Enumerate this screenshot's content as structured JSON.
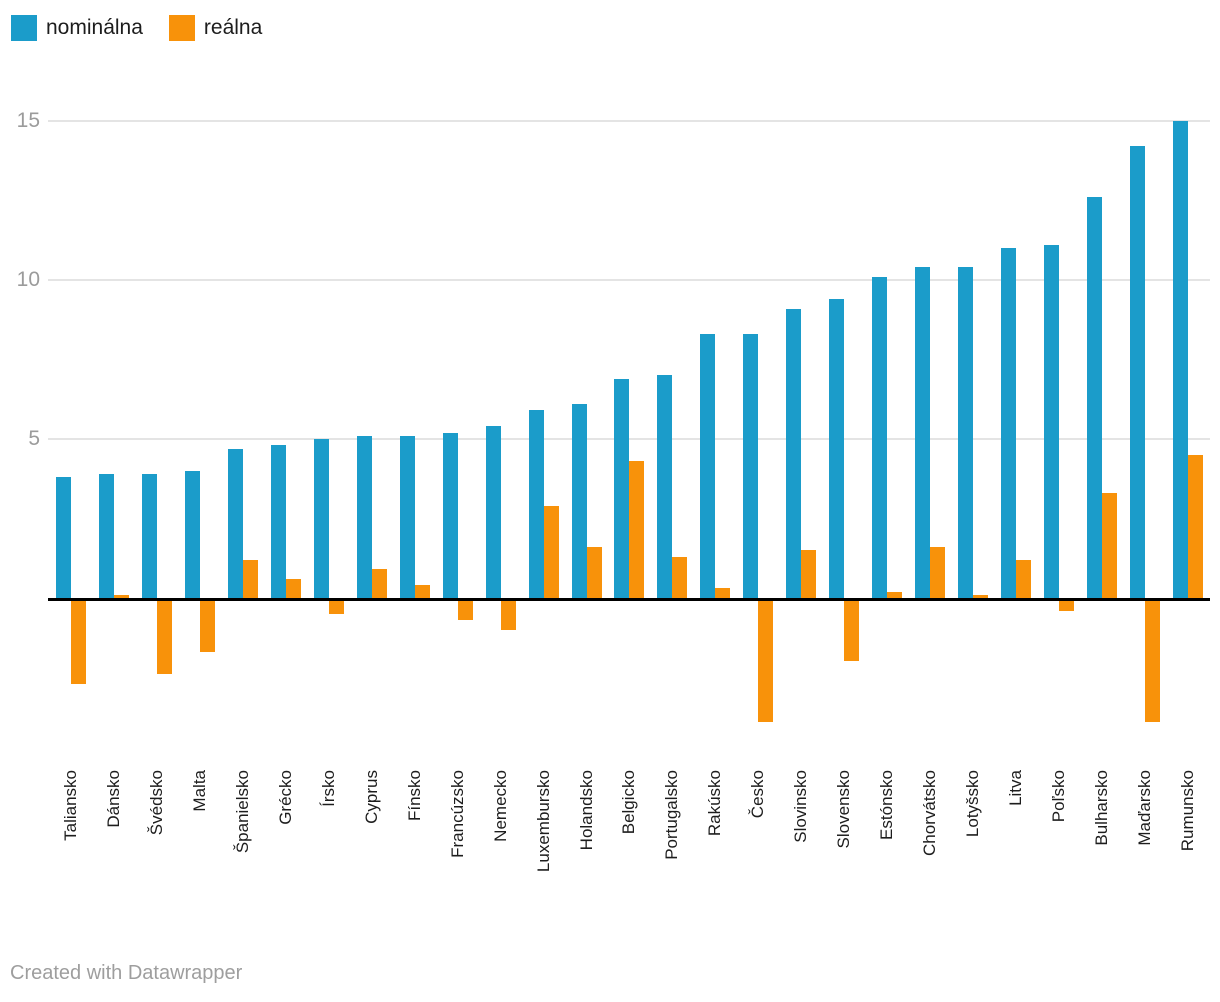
{
  "legend": {
    "items": [
      {
        "label": "nominálna",
        "color": "#1b9cca"
      },
      {
        "label": "reálna",
        "color": "#f8920a"
      }
    ]
  },
  "footer": {
    "credit": "Created with Datawrapper"
  },
  "colors": {
    "axis_text": "#9b9b9b",
    "grid": "#e4e4e4",
    "baseline": "#000000",
    "label_text": "#1d1d1d",
    "credit": "#9e9e9e"
  },
  "chart_data": {
    "type": "bar",
    "title": "",
    "xlabel": "",
    "ylabel": "",
    "grid": true,
    "legend_position": "top-left",
    "x_tick_rotation": -90,
    "yticks": [
      5,
      10,
      15
    ],
    "ylim": [
      -4.3,
      15.6
    ],
    "categories": [
      "Taliansko",
      "Dánsko",
      "Švédsko",
      "Malta",
      "Španielsko",
      "Grécko",
      "Írsko",
      "Cyprus",
      "Fínsko",
      "Francúzsko",
      "Nemecko",
      "Luxembursko",
      "Holandsko",
      "Belgicko",
      "Portugalsko",
      "Rakúsko",
      "Česko",
      "Slovinsko",
      "Slovensko",
      "Estónsko",
      "Chorvátsko",
      "Lotyšsko",
      "Litva",
      "Poľsko",
      "Bulharsko",
      "Maďarsko",
      "Rumunsko"
    ],
    "series": [
      {
        "name": "nominálna",
        "color": "#1b9cca",
        "values": [
          3.8,
          3.9,
          3.9,
          4.0,
          4.7,
          4.8,
          5.0,
          5.1,
          5.1,
          5.2,
          5.4,
          5.9,
          6.1,
          6.9,
          7.0,
          8.3,
          8.3,
          9.1,
          9.4,
          10.1,
          10.4,
          10.4,
          11.0,
          11.1,
          12.6,
          14.2,
          15.0
        ]
      },
      {
        "name": "reálna",
        "color": "#f8920a",
        "values": [
          -2.6,
          0.1,
          -2.3,
          -1.6,
          1.2,
          0.6,
          -0.4,
          0.9,
          0.4,
          -0.6,
          -0.9,
          2.9,
          1.6,
          4.3,
          1.3,
          0.3,
          -3.8,
          1.5,
          -1.9,
          0.2,
          1.6,
          0.1,
          1.2,
          -0.3,
          3.3,
          -3.8,
          4.5
        ]
      }
    ]
  }
}
